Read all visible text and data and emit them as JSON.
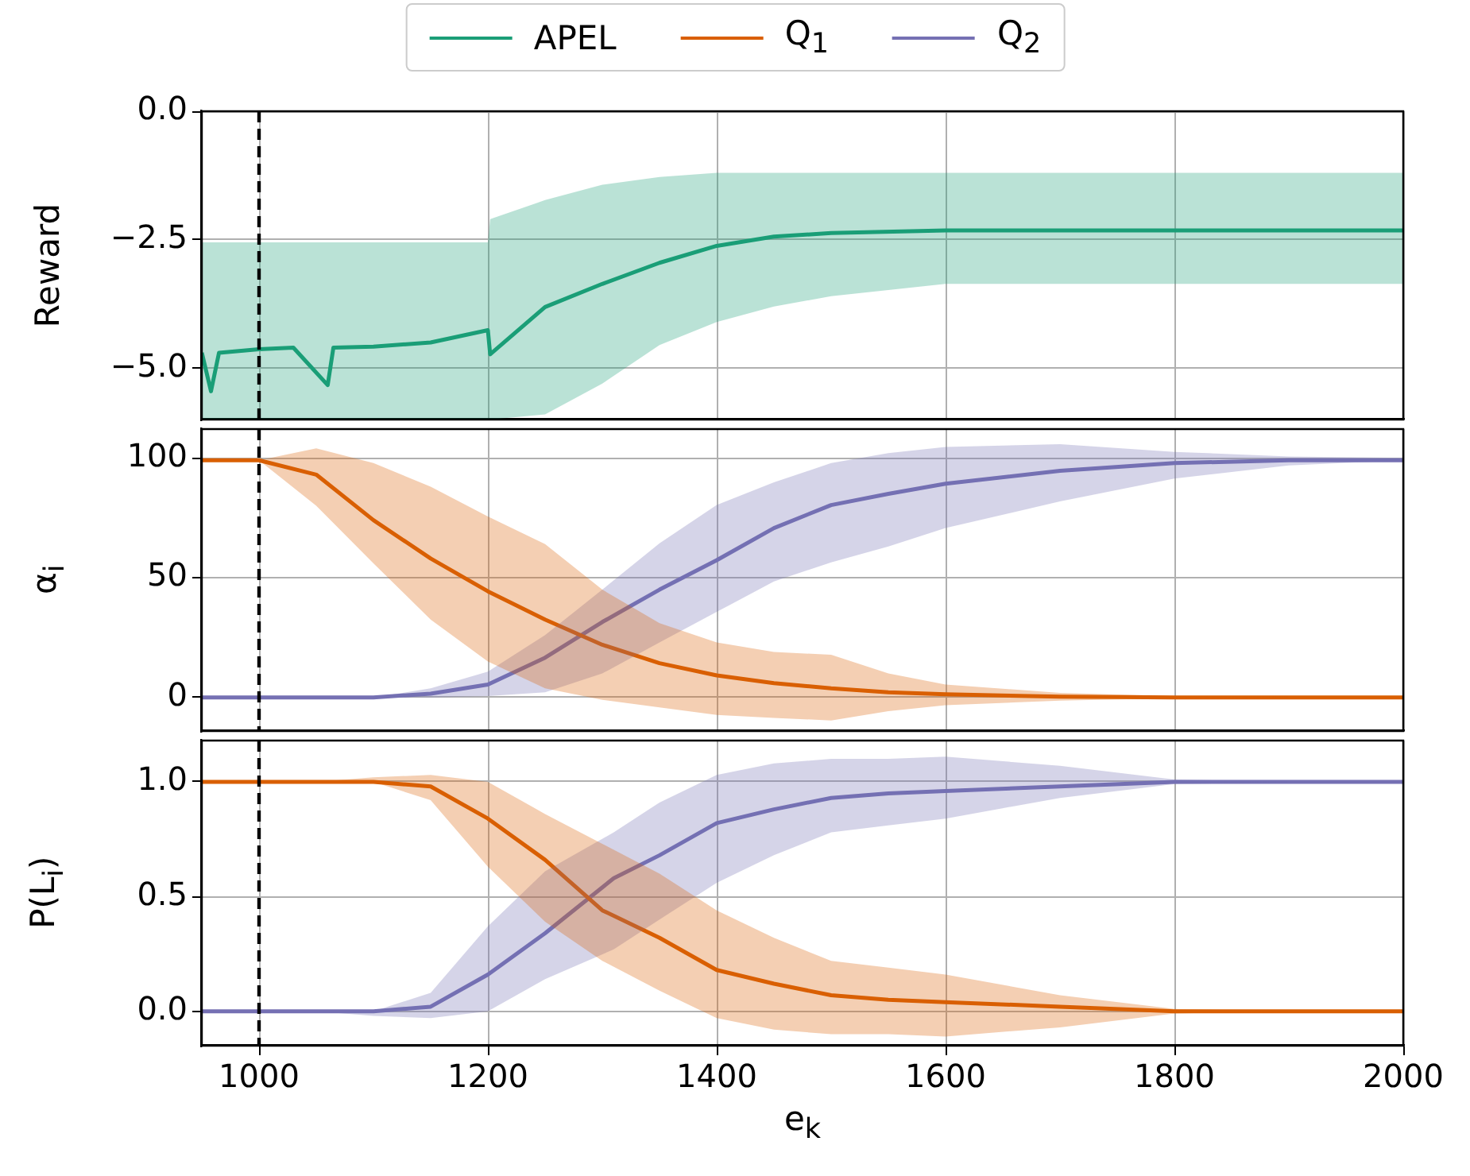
{
  "chart_data": [
    {
      "type": "line",
      "ylabel": "Reward",
      "x": [
        950,
        958,
        965,
        1000,
        1030,
        1060,
        1065,
        1100,
        1150,
        1200,
        1202,
        1250,
        1300,
        1350,
        1400,
        1450,
        1500,
        1600,
        1700,
        1800,
        1900,
        2000
      ],
      "xlim": [
        950,
        2000
      ],
      "xticks": [
        1000,
        1200,
        1400,
        1600,
        1800,
        2000
      ],
      "ylim": [
        -6,
        0
      ],
      "yticks": [
        {
          "value": 0,
          "label": "0.0"
        },
        {
          "value": -2.5,
          "label": "−2.5"
        },
        {
          "value": -5,
          "label": "−5.0"
        }
      ],
      "tick_labels": "y",
      "grid": true,
      "legend": "top",
      "ref_lines": [
        {
          "axis": "x",
          "value": 1000,
          "color": "#000000",
          "line_style": "dashed"
        }
      ],
      "series": [
        {
          "name": "APEL",
          "color": "#1b9e77",
          "values": [
            -4.7,
            -5.45,
            -4.7,
            -4.63,
            -4.6,
            -5.33,
            -4.6,
            -4.58,
            -4.5,
            -4.26,
            -4.73,
            -3.81,
            -3.36,
            -2.95,
            -2.62,
            -2.44,
            -2.37,
            -2.32,
            -2.32,
            -2.32,
            -2.32,
            -2.32
          ],
          "upper": [
            -2.55,
            -2.55,
            -2.55,
            -2.55,
            -2.55,
            -2.55,
            -2.55,
            -2.55,
            -2.55,
            -2.55,
            -2.1,
            -1.73,
            -1.43,
            -1.28,
            -1.2,
            -1.2,
            -1.2,
            -1.2,
            -1.2,
            -1.2,
            -1.2,
            -1.2
          ],
          "lower": [
            -6,
            -6,
            -6,
            -6,
            -6,
            -6,
            -6,
            -6,
            -6,
            -6,
            -6,
            -5.9,
            -5.3,
            -4.55,
            -4.1,
            -3.8,
            -3.6,
            -3.36,
            -3.36,
            -3.36,
            -3.36,
            -3.36
          ]
        }
      ]
    },
    {
      "type": "line",
      "ylabel": "α$_{i}$",
      "x": [
        950,
        1000,
        1050,
        1100,
        1150,
        1200,
        1250,
        1300,
        1350,
        1400,
        1450,
        1500,
        1550,
        1600,
        1700,
        1800,
        1900,
        2000
      ],
      "xlim": [
        950,
        2000
      ],
      "xticks": [
        1000,
        1200,
        1400,
        1600,
        1800,
        2000
      ],
      "ylim": [
        -14,
        112
      ],
      "yticks": [
        0,
        50,
        100
      ],
      "tick_labels": "y",
      "grid": true,
      "legend": "top",
      "ref_lines": [
        {
          "axis": "x",
          "value": 1000,
          "color": "#000000",
          "line_style": "dashed"
        }
      ],
      "series": [
        {
          "name": "Q$_{1}$",
          "color": "#d95f02",
          "values": [
            99,
            99,
            93,
            74,
            58,
            44.3,
            32.5,
            22,
            14.3,
            9.2,
            6,
            3.8,
            2.2,
            1.3,
            0.3,
            0,
            0,
            0
          ],
          "upper": [
            99,
            99,
            104,
            97.8,
            88,
            75.5,
            64,
            45,
            31,
            23,
            19,
            17.8,
            10,
            5.4,
            1.9,
            0.6,
            0,
            0
          ],
          "lower": [
            99,
            99,
            80,
            56,
            32.5,
            15,
            3.8,
            -1,
            -4.1,
            -7.3,
            -8.5,
            -9.6,
            -5.7,
            -3.2,
            -1.3,
            -0.3,
            0,
            0
          ]
        },
        {
          "name": "Q$_{2}$",
          "color": "#7570b3",
          "values": [
            0,
            0,
            0,
            0,
            1.6,
            5.4,
            16.6,
            31.5,
            45,
            57.3,
            70.7,
            80.3,
            85,
            89.2,
            94.6,
            97.8,
            99,
            99
          ],
          "upper": [
            0,
            0,
            0,
            0,
            3.8,
            10.8,
            26,
            45,
            64.3,
            80.3,
            89.8,
            97.8,
            102,
            104.5,
            105.7,
            102.5,
            100.6,
            100
          ],
          "lower": [
            0,
            0,
            0,
            0,
            0,
            0.6,
            2.2,
            10,
            23,
            35.7,
            48.4,
            56.4,
            63,
            70.7,
            81.8,
            91.4,
            96.8,
            99
          ]
        }
      ]
    },
    {
      "type": "line",
      "ylabel": "P(L$_{i}$)",
      "xlabel": "e$_{k}$",
      "x": [
        950,
        1000,
        1050,
        1100,
        1150,
        1200,
        1250,
        1300,
        1350,
        1400,
        1450,
        1500,
        1550,
        1600,
        1700,
        1800,
        1900,
        2000
      ],
      "xlim": [
        950,
        2000
      ],
      "xticks": [
        1000,
        1200,
        1400,
        1600,
        1800,
        2000
      ],
      "ylim": [
        -0.15,
        1.18
      ],
      "yticks": [
        {
          "value": 0,
          "label": "0.0"
        },
        {
          "value": 0.5,
          "label": "0.5"
        },
        {
          "value": 1,
          "label": "1.0"
        }
      ],
      "grid": true,
      "ref_lines": [
        {
          "axis": "x",
          "value": 1000,
          "color": "#000000",
          "line_style": "dashed"
        }
      ],
      "series": [
        {
          "color": "#d95f02",
          "values": [
            1,
            1,
            1,
            1,
            0.98,
            0.84,
            0.66,
            0.44,
            0.32,
            0.18,
            0.12,
            0.07,
            0.05,
            0.04,
            0.02,
            0,
            0,
            0
          ],
          "upper": [
            1,
            1,
            1,
            1.02,
            1.03,
            1,
            0.86,
            0.73,
            0.6,
            0.44,
            0.32,
            0.22,
            0.19,
            0.16,
            0.07,
            0.01,
            0,
            0
          ],
          "lower": [
            1,
            1,
            1,
            1,
            0.92,
            0.63,
            0.39,
            0.22,
            0.09,
            -0.03,
            -0.08,
            -0.1,
            -0.1,
            -0.11,
            -0.07,
            -0.01,
            0,
            0
          ]
        },
        {
          "color": "#7570b3",
          "x": [
            950,
            1000,
            1050,
            1100,
            1150,
            1200,
            1250,
            1310,
            1350,
            1400,
            1450,
            1500,
            1550,
            1600,
            1700,
            1800,
            1900,
            2000
          ],
          "values": [
            0,
            0,
            0,
            0,
            0.02,
            0.16,
            0.34,
            0.58,
            0.68,
            0.82,
            0.88,
            0.93,
            0.95,
            0.96,
            0.98,
            1,
            1,
            1
          ],
          "upper": [
            0,
            0,
            0,
            0,
            0.08,
            0.37,
            0.61,
            0.78,
            0.91,
            1.03,
            1.08,
            1.1,
            1.1,
            1.11,
            1.07,
            1.01,
            1,
            1
          ],
          "lower": [
            0,
            0,
            0,
            -0.02,
            -0.03,
            0,
            0.14,
            0.27,
            0.4,
            0.56,
            0.68,
            0.78,
            0.81,
            0.84,
            0.93,
            0.99,
            1,
            1
          ]
        }
      ]
    }
  ]
}
